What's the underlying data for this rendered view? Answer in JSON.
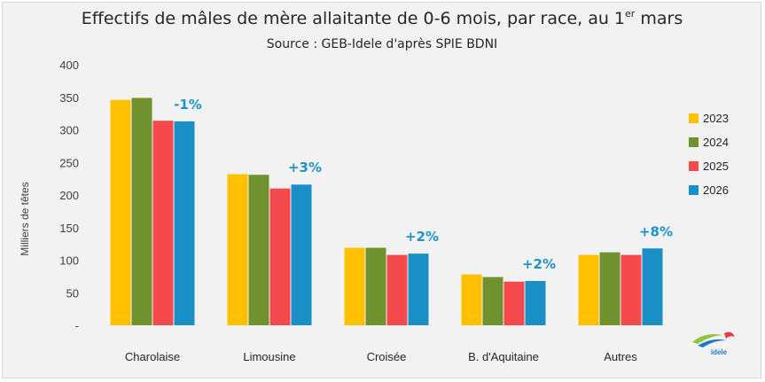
{
  "chart_data": {
    "type": "bar",
    "title": "Effectifs de mâles de mère allaitante de 0-6 mois, par race, au 1",
    "title_sup": "er",
    "title_end": " mars",
    "subtitle": "Source : GEB-Idele d'après SPIE BDNI",
    "ylabel": "Milliers de têtes",
    "xlabel": "",
    "ylim": [
      0,
      400
    ],
    "yticks": [
      {
        "value": 400,
        "label": "400"
      },
      {
        "value": 350,
        "label": "350"
      },
      {
        "value": 300,
        "label": "300"
      },
      {
        "value": 250,
        "label": "250"
      },
      {
        "value": 200,
        "label": "200"
      },
      {
        "value": 150,
        "label": "150"
      },
      {
        "value": 100,
        "label": "100"
      },
      {
        "value": 50,
        "label": "50"
      },
      {
        "value": 0,
        "label": "-"
      }
    ],
    "grid": false,
    "legend_position": "right",
    "categories": [
      "Charolaise",
      "Limousine",
      "Croisée",
      "B. d'Aquitaine",
      "Autres"
    ],
    "series": [
      {
        "name": "2023",
        "color": "#ffc000",
        "values": [
          346,
          232,
          119,
          78,
          108
        ]
      },
      {
        "name": "2024",
        "color": "#70922e",
        "values": [
          349,
          231,
          119,
          74,
          112
        ]
      },
      {
        "name": "2025",
        "color": "#f4494d",
        "values": [
          314,
          210,
          108,
          67,
          108
        ]
      },
      {
        "name": "2026",
        "color": "#1a8fc5",
        "values": [
          313,
          216,
          110,
          68,
          118
        ]
      }
    ],
    "annotations": [
      "-1%",
      "+3%",
      "+2%",
      "+2%",
      "+8%"
    ],
    "annotation_color": "#1f93c8"
  },
  "logo": {
    "name": "idele",
    "text": "idele"
  }
}
